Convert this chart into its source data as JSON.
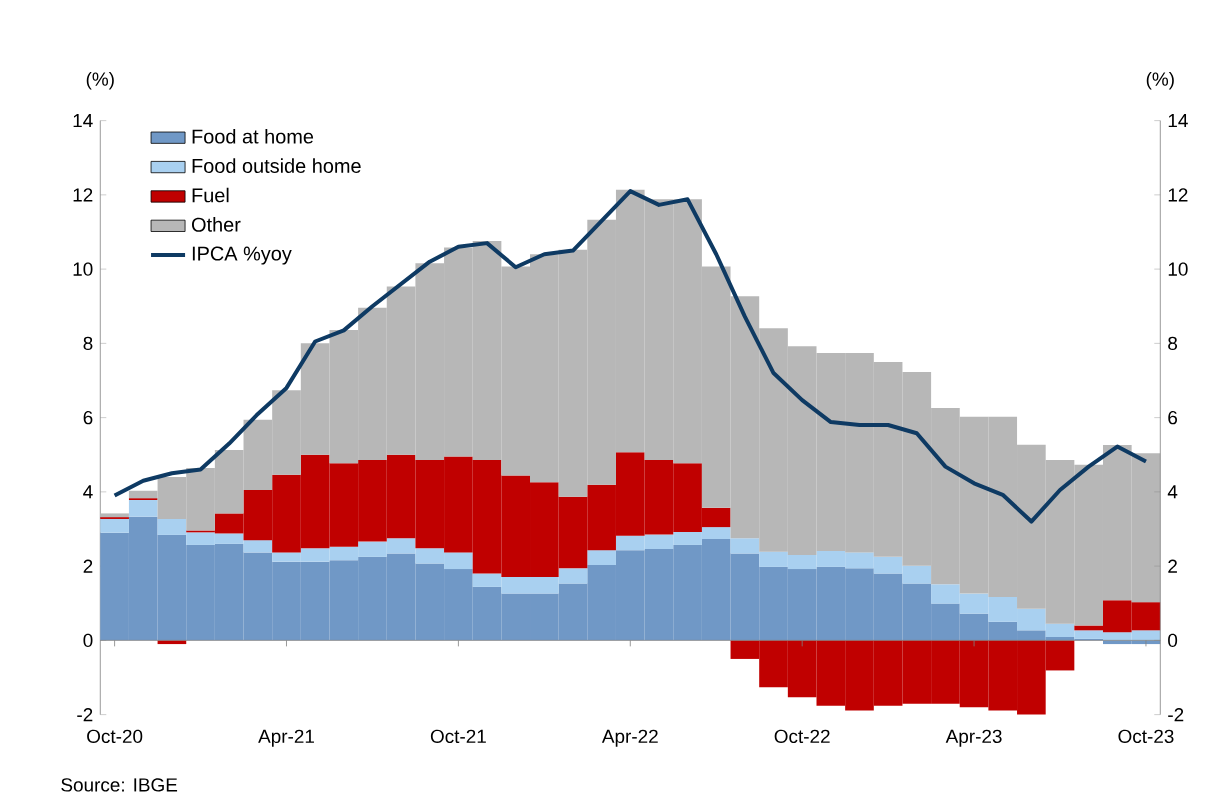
{
  "chart_data": {
    "type": "bar",
    "stacked": true,
    "ylabel": "(%)",
    "y2label": "(%)",
    "categories": [
      "Oct-20",
      null,
      null,
      null,
      null,
      null,
      "Apr-21",
      null,
      null,
      null,
      null,
      null,
      "Oct-21",
      null,
      null,
      null,
      null,
      null,
      "Apr-22",
      null,
      null,
      null,
      null,
      null,
      "Oct-22",
      null,
      null,
      null,
      null,
      null,
      "Apr-23",
      null,
      null,
      null,
      null,
      null,
      "Oct-23"
    ],
    "ylim": [
      -2,
      14
    ],
    "yticks": [
      -2,
      0,
      2,
      4,
      6,
      8,
      10,
      12,
      14
    ],
    "y2lim": [
      -2,
      14
    ],
    "y2ticks": [
      -2,
      0,
      2,
      4,
      6,
      8,
      10,
      12,
      14
    ],
    "legend": "top left",
    "marker": "none",
    "line_style": "solid",
    "series": [
      {
        "name": "Food at home",
        "color": "#7098c6",
        "values": [
          2.9,
          3.33,
          2.84,
          2.57,
          2.6,
          2.37,
          2.12,
          2.12,
          2.16,
          2.25,
          2.34,
          2.07,
          1.92,
          1.44,
          1.26,
          1.26,
          1.53,
          2.03,
          2.43,
          2.46,
          2.57,
          2.73,
          2.34,
          1.98,
          1.92,
          1.98,
          1.94,
          1.8,
          1.53,
          0.99,
          0.72,
          0.5,
          0.27,
          0.09,
          0.04,
          -0.1,
          -0.1
        ]
      },
      {
        "name": "Food outside home",
        "color": "#a9d0f0",
        "values": [
          0.37,
          0.45,
          0.43,
          0.34,
          0.28,
          0.33,
          0.25,
          0.36,
          0.36,
          0.41,
          0.41,
          0.41,
          0.45,
          0.36,
          0.45,
          0.45,
          0.41,
          0.4,
          0.39,
          0.39,
          0.35,
          0.32,
          0.41,
          0.41,
          0.38,
          0.43,
          0.43,
          0.45,
          0.48,
          0.52,
          0.54,
          0.67,
          0.58,
          0.36,
          0.23,
          0.22,
          0.27
        ]
      },
      {
        "name": "Fuel",
        "color": "#c00000",
        "values": [
          0.05,
          0.05,
          -0.1,
          0.05,
          0.54,
          1.35,
          2.09,
          2.52,
          2.25,
          2.2,
          2.25,
          2.38,
          2.58,
          3.06,
          2.73,
          2.55,
          1.93,
          1.76,
          2.25,
          2.01,
          1.85,
          0.52,
          -0.5,
          -1.26,
          -1.53,
          -1.76,
          -1.89,
          -1.76,
          -1.71,
          -1.71,
          -1.8,
          -1.89,
          -2.0,
          -0.81,
          0.13,
          0.86,
          0.76
        ]
      },
      {
        "name": "Other",
        "color": "#b7b7b7",
        "values": [
          0.1,
          0.2,
          1.13,
          1.68,
          1.71,
          1.89,
          2.28,
          3.0,
          3.59,
          4.1,
          4.53,
          5.3,
          5.63,
          5.9,
          5.63,
          6.14,
          6.65,
          7.14,
          7.07,
          7.02,
          7.11,
          6.5,
          6.52,
          6.02,
          5.62,
          5.33,
          5.37,
          5.25,
          5.22,
          4.75,
          4.76,
          4.85,
          4.42,
          4.41,
          4.33,
          4.18,
          4.01
        ]
      },
      {
        "name": "IPCA %yoy",
        "type": "line",
        "color": "#0e3a63",
        "values": [
          3.9,
          4.3,
          4.5,
          4.6,
          5.3,
          6.1,
          6.8,
          8.05,
          8.35,
          9.0,
          9.6,
          10.2,
          10.6,
          10.7,
          10.05,
          10.4,
          10.5,
          11.3,
          12.1,
          11.73,
          11.88,
          10.4,
          8.72,
          7.2,
          6.47,
          5.88,
          5.8,
          5.8,
          5.58,
          4.68,
          4.23,
          3.92,
          3.2,
          4.05,
          4.68,
          5.22,
          4.82
        ]
      }
    ],
    "annotations": [
      "Source: IBGE"
    ]
  }
}
